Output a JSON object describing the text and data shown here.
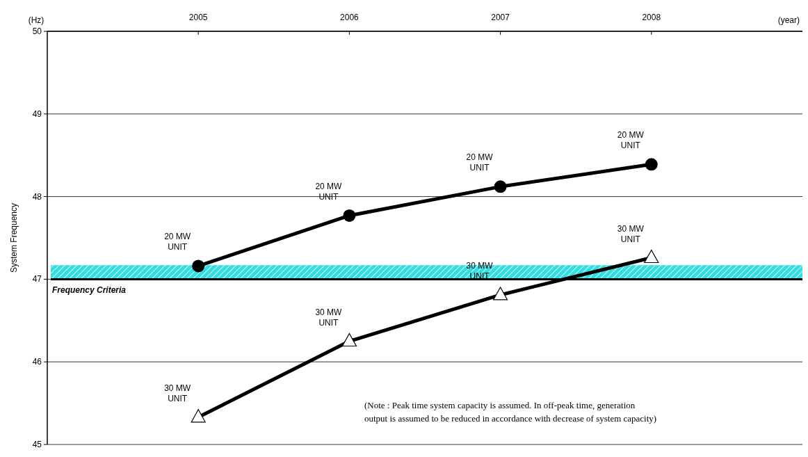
{
  "chart_data": {
    "type": "line",
    "xlabel": "(year)",
    "ylabel": "System Frequency",
    "x": [
      2005,
      2006,
      2007,
      2008
    ],
    "xlim": [
      2004,
      2009
    ],
    "xticks": [
      2005,
      2006,
      2007,
      2008
    ],
    "ylim": [
      45,
      50
    ],
    "yticks": [
      45,
      46,
      47,
      48,
      49,
      50
    ],
    "grid": "y",
    "line_style": "solid",
    "series": [
      {
        "color": "#000000",
        "marker": "circle",
        "values": [
          47.16,
          47.77,
          48.12,
          48.39
        ]
      },
      {
        "color": "#000000",
        "marker": "triangle",
        "values": [
          45.33,
          46.25,
          46.81,
          47.26
        ]
      }
    ],
    "ref_lines": [
      {
        "axis": "y",
        "value": 47,
        "label": "Frequency Criteria",
        "color": "#000000"
      }
    ],
    "bands": [
      {
        "axis": "y",
        "from": 47,
        "to": 47.17,
        "color": "#33dde0"
      }
    ],
    "annotations": [
      "(Hz)",
      "(Note : Peak time system capacity is assumed.  In off-peak time, generation\noutput is assumed to be reduced in accordance with decrease of system capacity)",
      {
        "text": "20 MW\nUNIT",
        "x": 2005,
        "y": 47.16
      },
      {
        "text": "20 MW\nUNIT",
        "x": 2006,
        "y": 47.77
      },
      {
        "text": "20 MW\nUNIT",
        "x": 2007,
        "y": 48.12
      },
      {
        "text": "20 MW\nUNIT",
        "x": 2008,
        "y": 48.39
      },
      {
        "text": "30 MW\nUNIT",
        "x": 2005,
        "y": 45.33
      },
      {
        "text": "30 MW\nUNIT",
        "x": 2006,
        "y": 46.25
      },
      {
        "text": "30 MW\nUNIT",
        "x": 2007,
        "y": 46.81
      },
      {
        "text": "30 MW\nUNIT",
        "x": 2008,
        "y": 47.26
      }
    ]
  }
}
